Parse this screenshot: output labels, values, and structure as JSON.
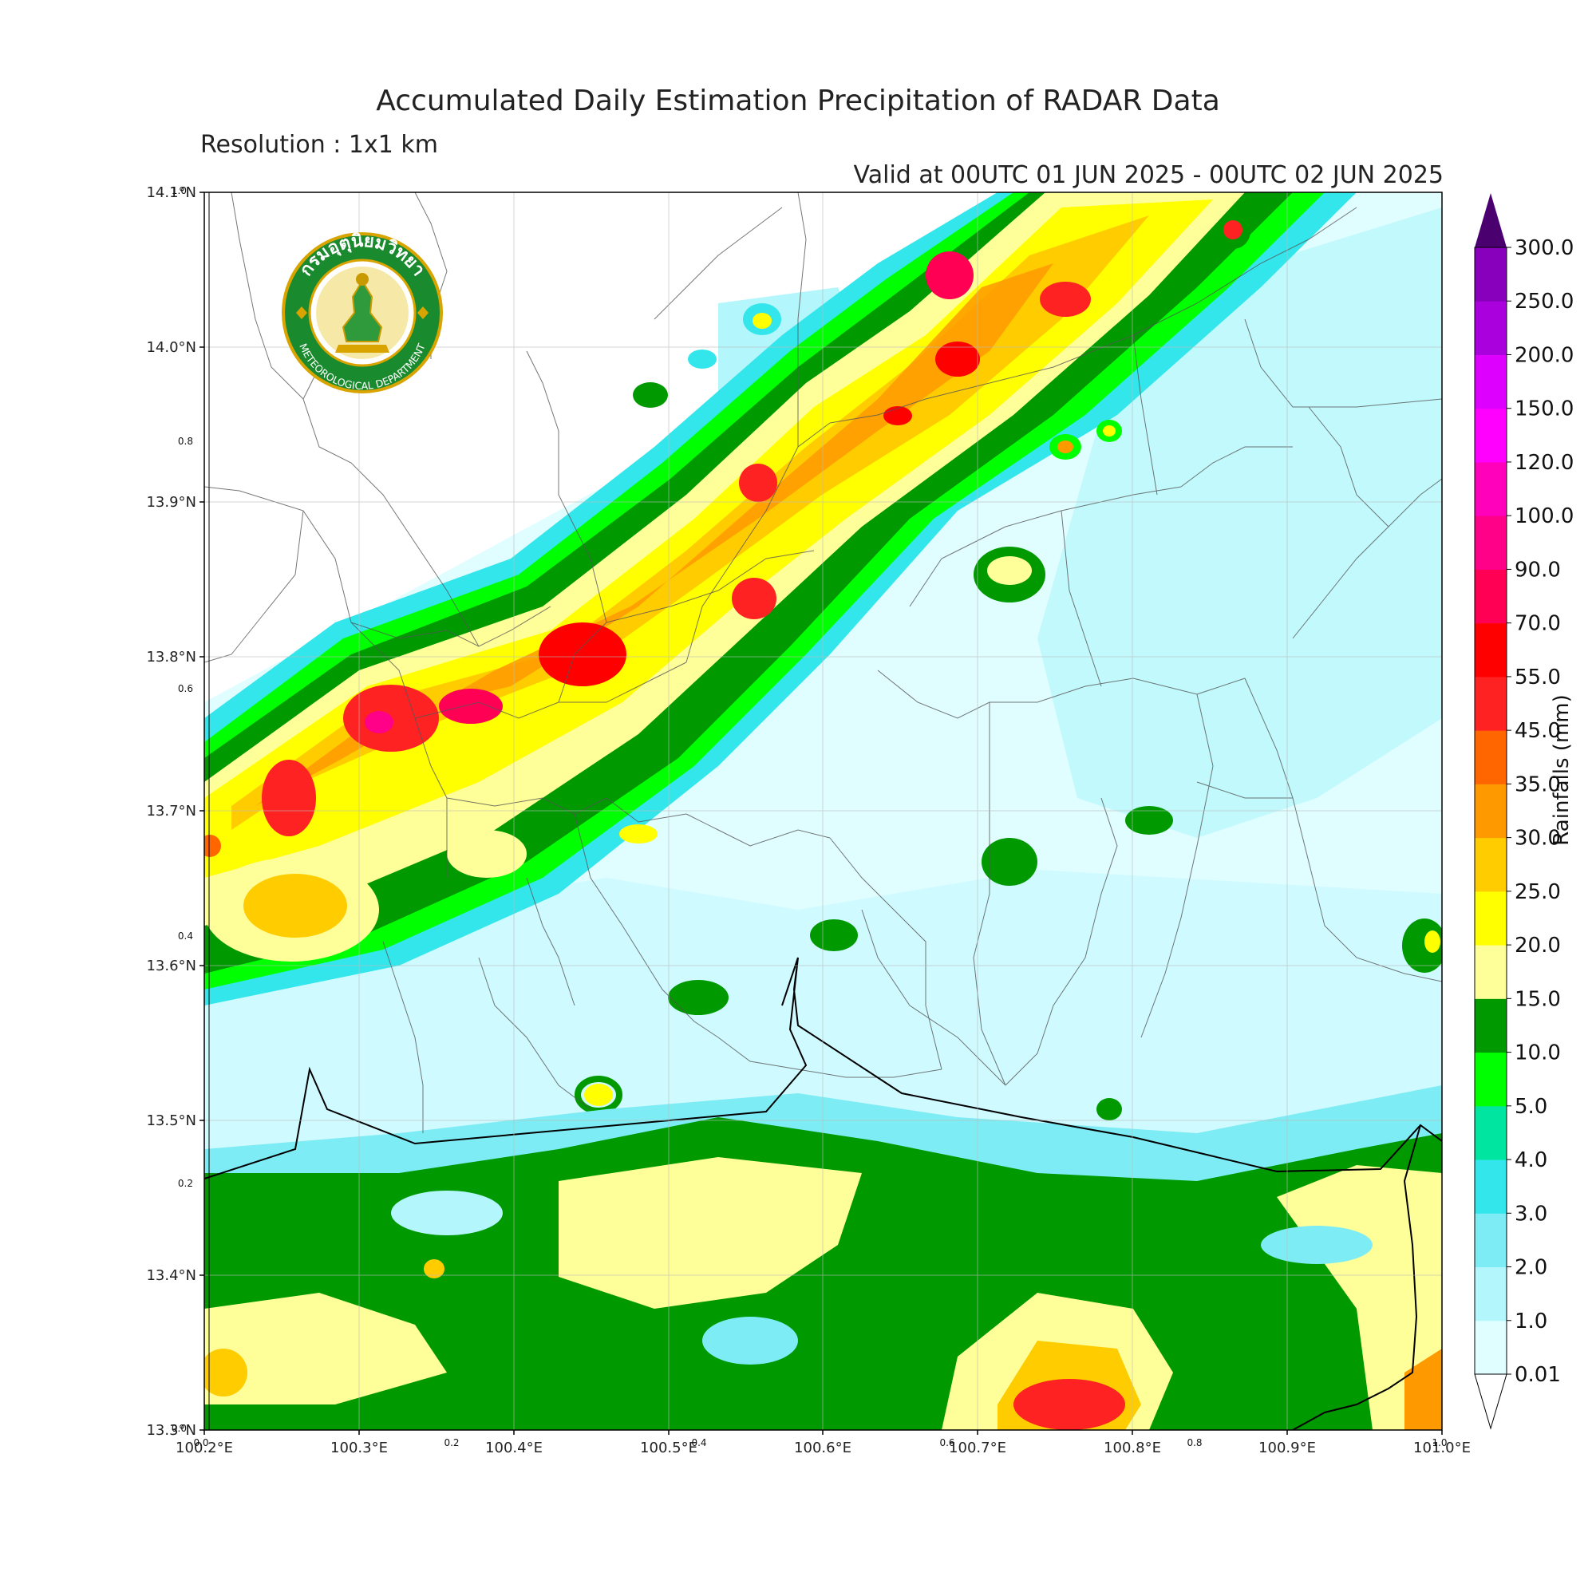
{
  "title": "Accumulated Daily Estimation Precipitation of RADAR Data",
  "resolution_label": "Resolution : 1x1 km",
  "valid_label": "Valid at 00UTC 01 JUN 2025 - 00UTC 02 JUN 2025",
  "logo": {
    "top_text": "กรมอุตุนิยมวิทยา",
    "bottom_text": "METEOROLOGICAL DEPARTMENT",
    "ring_color": "#1a8a2e",
    "gold_color": "#d9a400"
  },
  "map": {
    "lon_range": [
      100.2,
      101.0
    ],
    "lat_range": [
      13.3,
      14.1
    ],
    "lon_ticks": [
      "100.2°E",
      "100.3°E",
      "100.4°E",
      "100.5°E",
      "100.6°E",
      "100.7°E",
      "100.8°E",
      "100.9°E",
      "101.0°E"
    ],
    "lat_ticks": [
      "13.3°N",
      "13.4°N",
      "13.5°N",
      "13.6°N",
      "13.7°N",
      "13.8°N",
      "13.9°N",
      "14.0°N",
      "14.1°N"
    ],
    "frac_ticks_left": [
      "0.2",
      "0.4",
      "0.6",
      "0.8"
    ],
    "frac_ticks_bottom": [
      "0.2",
      "0.4",
      "0.6",
      "0.8"
    ],
    "corner_labels": {
      "bottom_left": "0.0",
      "top_left": "1.0",
      "bottom_right": "1.0"
    },
    "background_color": "#ffffff"
  },
  "colorbar": {
    "title": "Rainfalls (mm)",
    "levels": [
      "0.01",
      "1.0",
      "2.0",
      "3.0",
      "4.0",
      "5.0",
      "10.0",
      "15.0",
      "20.0",
      "25.0",
      "30.0",
      "35.0",
      "45.0",
      "55.0",
      "70.0",
      "90.0",
      "100.0",
      "120.0",
      "150.0",
      "200.0",
      "250.0",
      "300.0"
    ],
    "colors": [
      "#e0fdff",
      "#b3f6fb",
      "#7eecf4",
      "#33e6ec",
      "#00e5a0",
      "#00ff00",
      "#009900",
      "#ffff99",
      "#ffff00",
      "#ffcc00",
      "#ff9900",
      "#ff6600",
      "#ff2222",
      "#ff0000",
      "#ff0055",
      "#ff0088",
      "#ff00bb",
      "#ff00ff",
      "#dd00ff",
      "#aa00dd",
      "#8800bb",
      "#660088"
    ],
    "extend_top_color": "#4b0070"
  }
}
